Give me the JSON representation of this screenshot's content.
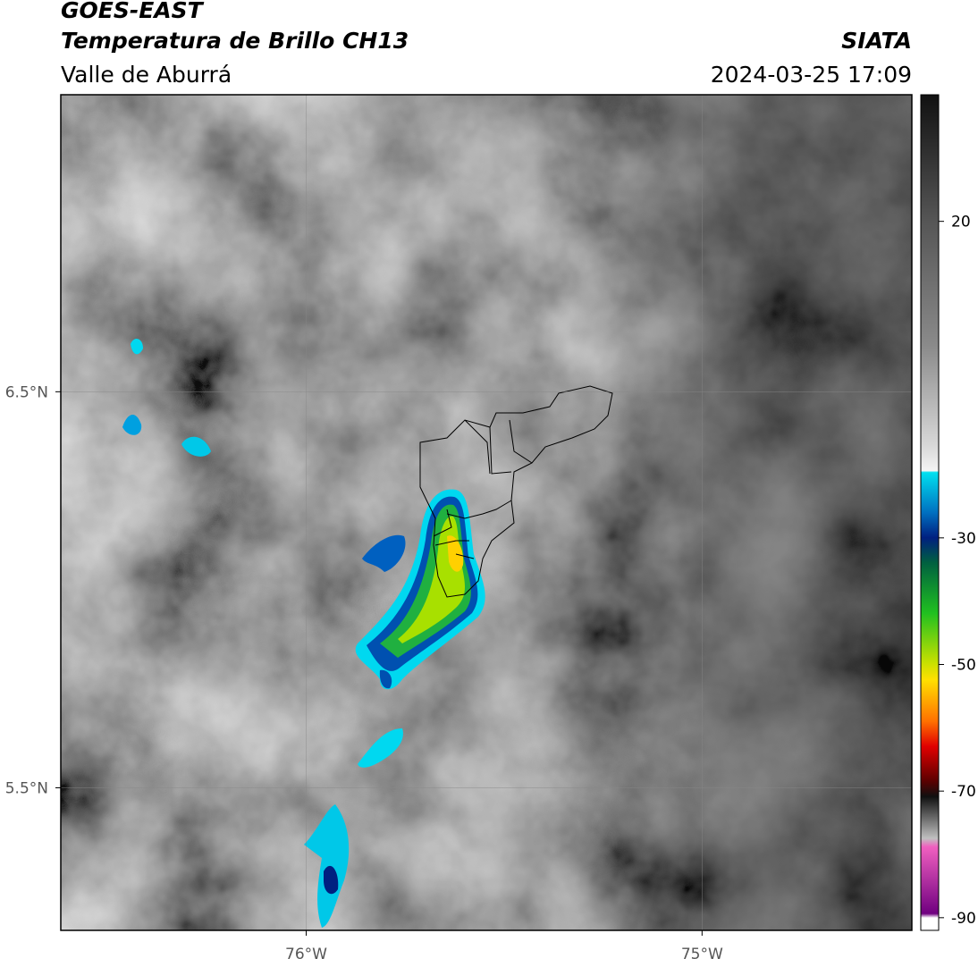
{
  "header": {
    "title": "GOES-EAST",
    "subtitle": "Temperatura de Brillo CH13",
    "region": "Valle de Aburrá",
    "source": "SIATA",
    "datetime": "2024-03-25 17:09"
  },
  "map": {
    "xlim": [
      -76.62,
      -74.47
    ],
    "ylim": [
      5.14,
      7.25
    ],
    "xticks": [
      {
        "value": -76,
        "label": "76°W"
      },
      {
        "value": -75,
        "label": "75°W"
      }
    ],
    "yticks": [
      {
        "value": 6.5,
        "label": "6.5°N"
      },
      {
        "value": 5.5,
        "label": "5.5°N"
      }
    ],
    "grid": true
  },
  "colorbar": {
    "lim": [
      -92,
      40
    ],
    "ticks": [
      20,
      -30,
      -50,
      -70,
      -90
    ]
  }
}
